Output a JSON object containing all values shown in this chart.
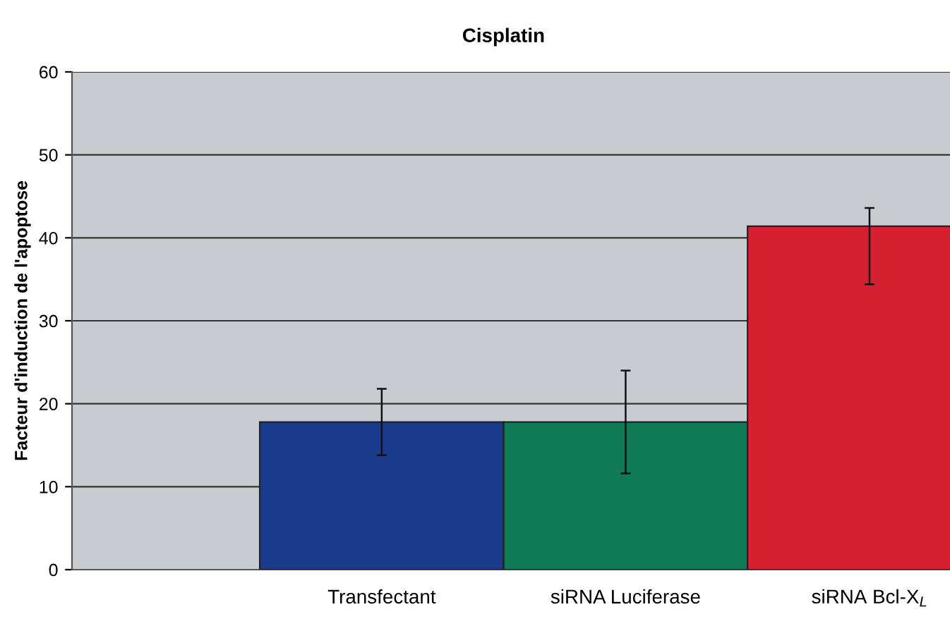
{
  "chart_data": {
    "type": "bar",
    "title": "Cisplatin",
    "ylabel": "Facteur d'induction de l'apoptose",
    "categories": [
      "Transfectant",
      "siRNA Luciferase",
      "siRNA Bcl-X$_{L}$"
    ],
    "values": [
      17.8,
      17.8,
      41.4
    ],
    "colors": [
      "#1a3a8c",
      "#0f7a55",
      "#d42030"
    ],
    "errors": [
      [
        13.8,
        21.8
      ],
      [
        11.6,
        24.0
      ],
      [
        34.4,
        43.6
      ]
    ],
    "ylim": [
      0,
      60
    ],
    "yticks": [
      0,
      10,
      20,
      30,
      40,
      50,
      60
    ],
    "grid": "y",
    "legend": false
  }
}
